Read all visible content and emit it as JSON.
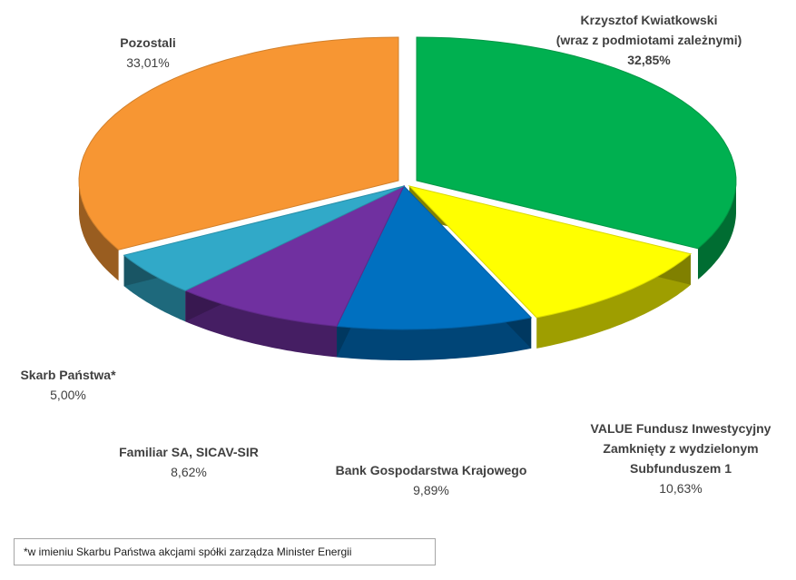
{
  "chart_data": {
    "type": "pie",
    "style": "3d-exploded",
    "slices": [
      {
        "name_lines": [
          "Krzysztof Kwiatkowski",
          "(wraz z podmiotami zależnymi)"
        ],
        "label": "32,85%",
        "value": 32.85,
        "color": "#00b050",
        "value_bold": true
      },
      {
        "name_lines": [
          "VALUE Fundusz Inwestycyjny",
          "Zamknięty z wydzielonym",
          "Subfunduszem 1"
        ],
        "label": "10,63%",
        "value": 10.63,
        "color": "#ffff00",
        "value_bold": false
      },
      {
        "name_lines": [
          "Bank Gospodarstwa  Krajowego"
        ],
        "label": "9,89%",
        "value": 9.89,
        "color": "#0070c0",
        "value_bold": false
      },
      {
        "name_lines": [
          "Familiar SA, SICAV-SIR"
        ],
        "label": "8,62%",
        "value": 8.62,
        "color": "#7030a0",
        "value_bold": false
      },
      {
        "name_lines": [
          "Skarb Państwa*"
        ],
        "label": "5,00%",
        "value": 5.0,
        "color": "#31a9c8",
        "value_bold": false
      },
      {
        "name_lines": [
          "Pozostali"
        ],
        "label": "33,01%",
        "value": 33.01,
        "color": "#f79633",
        "value_bold": false
      }
    ]
  },
  "footnote": "*w imieniu Skarbu Państwa akcjami spółki zarządza Minister Energii"
}
